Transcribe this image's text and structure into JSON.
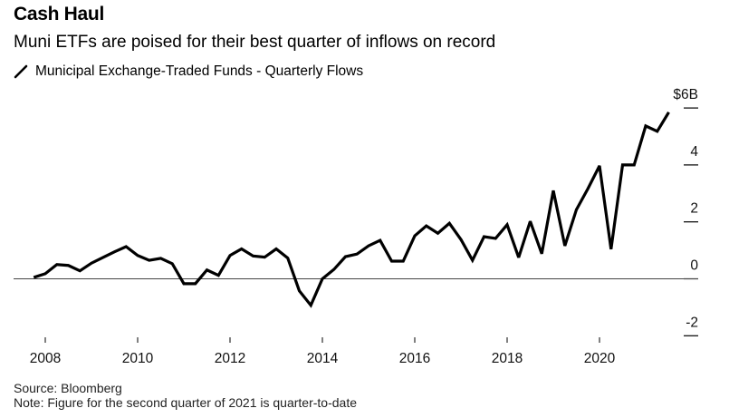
{
  "title": "Cash Haul",
  "subtitle": "Muni ETFs are poised for their best quarter of inflows on record",
  "legend": {
    "label": "Municipal Exchange-Traded Funds - Quarterly Flows",
    "icon": "line-swatch-icon",
    "color": "#000000"
  },
  "source": "Source: Bloomberg",
  "note": "Note: Figure for the second quarter of 2021 is quarter-to-date",
  "chart_data": {
    "type": "line",
    "title": "Cash Haul",
    "xlabel": "",
    "ylabel": "",
    "ylim": [
      -2,
      6
    ],
    "xlim": [
      2007.5,
      2022.0
    ],
    "yticks": [
      6,
      4,
      2,
      0,
      -2
    ],
    "ytick_labels": [
      "$6B",
      "4",
      "2",
      "0",
      "-2"
    ],
    "xticks": [
      2008,
      2010,
      2012,
      2014,
      2016,
      2018,
      2020
    ],
    "xtick_labels": [
      "2008",
      "2010",
      "2012",
      "2014",
      "2016",
      "2018",
      "2020"
    ],
    "grid": false,
    "legend_position": "top-left",
    "series": [
      {
        "name": "Municipal Exchange-Traded Funds - Quarterly Flows",
        "color": "#000000",
        "start_year": 2007.75,
        "step_years": 0.25,
        "values": [
          0.05,
          0.18,
          0.5,
          0.47,
          0.28,
          0.55,
          0.75,
          0.95,
          1.13,
          0.82,
          0.65,
          0.72,
          0.53,
          -0.17,
          -0.17,
          0.31,
          0.12,
          0.82,
          1.05,
          0.8,
          0.76,
          1.05,
          0.73,
          -0.42,
          -0.93,
          0.0,
          0.33,
          0.78,
          0.87,
          1.16,
          1.35,
          0.62,
          0.62,
          1.51,
          1.86,
          1.6,
          1.95,
          1.38,
          0.65,
          1.48,
          1.42,
          1.9,
          0.75,
          2.02,
          0.88,
          3.1,
          1.16,
          2.43,
          3.17,
          3.97,
          1.04,
          4.0,
          4.0,
          5.37,
          5.18,
          5.85
        ]
      }
    ]
  }
}
